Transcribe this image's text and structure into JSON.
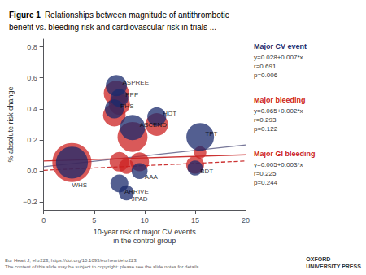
{
  "chart_data": {
    "type": "scatter",
    "title": "Figure 1",
    "subtitle": "Relationships between magnitude of antithrombotic\nbenefit vs. bleeding risk and cardiovascular risk in trials ...",
    "x_label": "10-year risk of major CV events\nin the control group",
    "y_label": "% absolute risk change",
    "xlim": [
      0,
      20
    ],
    "ylim": [
      -0.25,
      0.85
    ],
    "xticks": [
      0,
      5,
      10,
      15,
      20
    ],
    "yticks": [
      {
        "value": -0.2,
        "label": "−0.2"
      },
      {
        "value": 0,
        "label": "0.0"
      },
      0.2,
      0.4,
      0.6,
      0.8
    ],
    "grid": false,
    "series": [
      {
        "type": "line",
        "color": "#777799",
        "line_style": "solid",
        "x": [
          0,
          20
        ],
        "values": [
          0.028,
          0.168
        ]
      },
      {
        "type": "line",
        "color": "#cc3333",
        "line_style": "solid",
        "x": [
          0,
          20
        ],
        "values": [
          0.065,
          0.105
        ]
      },
      {
        "type": "line",
        "color": "#cc3333",
        "line_style": "dashed",
        "x": [
          0,
          20
        ],
        "values": [
          0.005,
          0.065
        ]
      },
      {
        "type": "scatter",
        "color": "#cc2222",
        "x": [
          2.8,
          7.2,
          7.5,
          7.0,
          8.8,
          11.2,
          15.5,
          7.5,
          8.2,
          9.5,
          15.0
        ],
        "values": [
          0.055,
          0.5,
          0.43,
          0.36,
          0.22,
          0.3,
          0.12,
          0.06,
          0.03,
          0.06,
          0.04
        ],
        "size": [
          1200,
          500,
          350,
          400,
          700,
          400,
          120,
          300,
          180,
          280,
          250
        ]
      },
      {
        "type": "scatter",
        "color": "#1a2a6c",
        "x": [
          2.8,
          7.2,
          7.5,
          7.0,
          8.8,
          11.2,
          15.5,
          7.5,
          8.2,
          9.5,
          15.0
        ],
        "values": [
          0.055,
          0.55,
          0.47,
          0.4,
          0.28,
          0.35,
          0.22,
          -0.08,
          -0.14,
          0.0,
          0.02
        ],
        "size": [
          800,
          350,
          250,
          280,
          500,
          280,
          600,
          250,
          180,
          200,
          180
        ]
      }
    ],
    "annotations": [
      {
        "text": "WHS",
        "x": 2.8,
        "y": -0.09
      },
      {
        "text": "ASPREE",
        "x": 7.8,
        "y": 0.57
      },
      {
        "text": "PPP",
        "x": 8.1,
        "y": 0.49
      },
      {
        "text": "PHS",
        "x": 7.6,
        "y": 0.42
      },
      {
        "text": "ASCEND",
        "x": 9.5,
        "y": 0.3
      },
      {
        "text": "HOT",
        "x": 11.8,
        "y": 0.37
      },
      {
        "text": "TPT",
        "x": 16.0,
        "y": 0.24
      },
      {
        "text": "ARRIVE",
        "x": 8.0,
        "y": -0.13
      },
      {
        "text": "JPAD",
        "x": 8.7,
        "y": -0.18
      },
      {
        "text": "AAA",
        "x": 10.0,
        "y": -0.04
      },
      {
        "text": "BDT",
        "x": 15.5,
        "y": 0.0
      }
    ],
    "side_notes": [
      {
        "title": "Major CV event",
        "text": "y=0.028+0.007*x\nr=0.691\np=0.006",
        "color": "#1a2a6c"
      },
      {
        "title": "Major bleeding",
        "text": "y=0.065+0.002*x\nr=0.293\np=0.122",
        "color": "#cc2222"
      },
      {
        "title": "Major GI bleeding",
        "text": "y=0.005+0.003*x\nr=0.225\np=0.244",
        "color": "#cc2222"
      }
    ],
    "footer": "Eur Heart J, ehz223, https://doi.org/10.1093/eurheart/ehz223\nThe content of this slide may be subject to copyright: please see the slide notes for details.",
    "credit": "OXFORD\nUNIVERSITY PRESS"
  }
}
